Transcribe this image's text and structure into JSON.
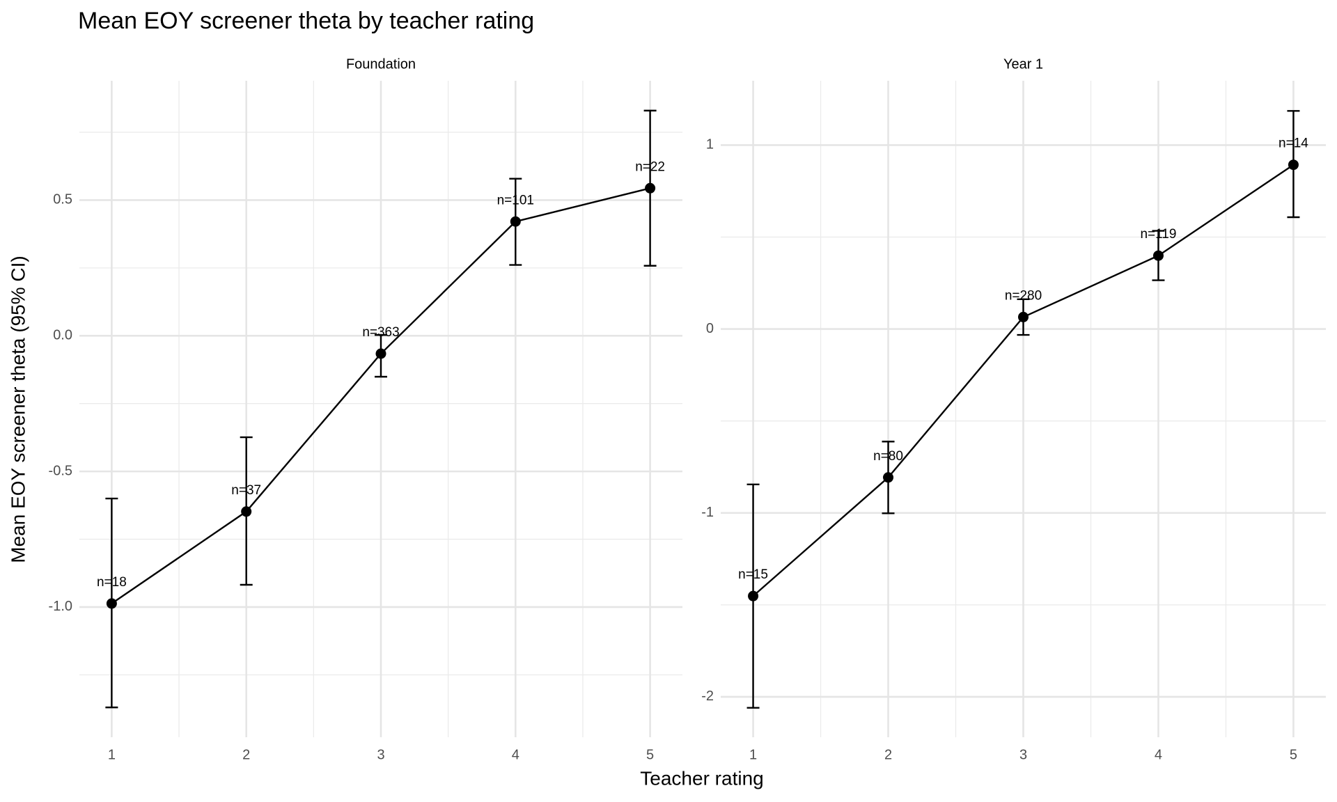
{
  "title": "Mean EOY screener theta by teacher rating",
  "x_label": "Teacher rating",
  "y_label": "Mean EOY screener theta (95% CI)",
  "chart_data": [
    {
      "type": "line",
      "subtitle": "Foundation",
      "x": [
        1,
        2,
        3,
        4,
        5
      ],
      "values": [
        -0.987,
        -0.648,
        -0.066,
        0.421,
        0.544
      ],
      "ci_lower": [
        -1.37,
        -0.918,
        -0.151,
        0.261,
        0.258
      ],
      "ci_upper": [
        -0.6,
        -0.374,
        0.003,
        0.579,
        0.83
      ],
      "annotations": [
        "n=18",
        "n=37",
        "n=363",
        "n=101",
        "n=22"
      ],
      "color": "#000000",
      "xlim": [
        0.76,
        5.24
      ],
      "xticks": [
        1,
        2,
        3,
        4,
        5
      ],
      "ylim": [
        -1.48,
        0.94
      ],
      "yticks": [
        {
          "value": -1,
          "label": "-1.0"
        },
        -0.5,
        {
          "value": 0,
          "label": "0.0"
        },
        0.5
      ],
      "grid": true
    },
    {
      "type": "line",
      "subtitle": "Year 1",
      "x": [
        1,
        2,
        3,
        4,
        5
      ],
      "values": [
        -1.452,
        -0.807,
        0.065,
        0.399,
        0.893
      ],
      "ci_lower": [
        -2.06,
        -1.002,
        -0.032,
        0.265,
        0.608
      ],
      "ci_upper": [
        -0.845,
        -0.612,
        0.162,
        0.534,
        1.186
      ],
      "annotations": [
        "n=15",
        "n=80",
        "n=280",
        "n=119",
        "n=14"
      ],
      "color": "#000000",
      "xlim": [
        0.76,
        5.24
      ],
      "xticks": [
        1,
        2,
        3,
        4,
        5
      ],
      "ylim": [
        -2.22,
        1.35
      ],
      "yticks": [
        -2,
        -1,
        0,
        1
      ],
      "grid": true
    }
  ]
}
